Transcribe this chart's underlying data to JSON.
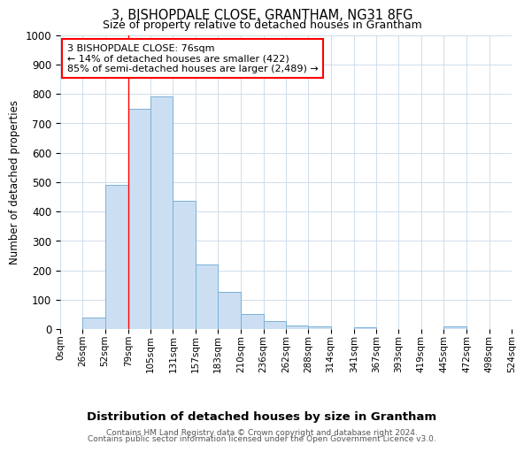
{
  "title": "3, BISHOPDALE CLOSE, GRANTHAM, NG31 8FG",
  "subtitle": "Size of property relative to detached houses in Grantham",
  "xlabel": "Distribution of detached houses by size in Grantham",
  "ylabel": "Number of detached properties",
  "bin_edges": [
    0,
    26,
    52,
    79,
    105,
    131,
    157,
    183,
    210,
    236,
    262,
    288,
    314,
    341,
    367,
    393,
    419,
    445,
    472,
    498,
    524
  ],
  "bar_heights": [
    0,
    40,
    490,
    750,
    790,
    435,
    220,
    125,
    50,
    27,
    12,
    8,
    0,
    6,
    0,
    0,
    0,
    8,
    0,
    0
  ],
  "categories": [
    "0sqm",
    "26sqm",
    "52sqm",
    "79sqm",
    "105sqm",
    "131sqm",
    "157sqm",
    "183sqm",
    "210sqm",
    "236sqm",
    "262sqm",
    "288sqm",
    "314sqm",
    "341sqm",
    "367sqm",
    "393sqm",
    "419sqm",
    "445sqm",
    "472sqm",
    "498sqm",
    "524sqm"
  ],
  "bar_color": "#ccdff2",
  "bar_edge_color": "#7ab0d8",
  "red_line_x": 79,
  "annotation_line1": "3 BISHOPDALE CLOSE: 76sqm",
  "annotation_line2": "← 14% of detached houses are smaller (422)",
  "annotation_line3": "85% of semi-detached houses are larger (2,489) →",
  "ylim": [
    0,
    1000
  ],
  "yticks": [
    0,
    100,
    200,
    300,
    400,
    500,
    600,
    700,
    800,
    900,
    1000
  ],
  "footer_line1": "Contains HM Land Registry data © Crown copyright and database right 2024.",
  "footer_line2": "Contains public sector information licensed under the Open Government Licence v3.0.",
  "background_color": "#ffffff",
  "grid_color": "#c8d8e8"
}
